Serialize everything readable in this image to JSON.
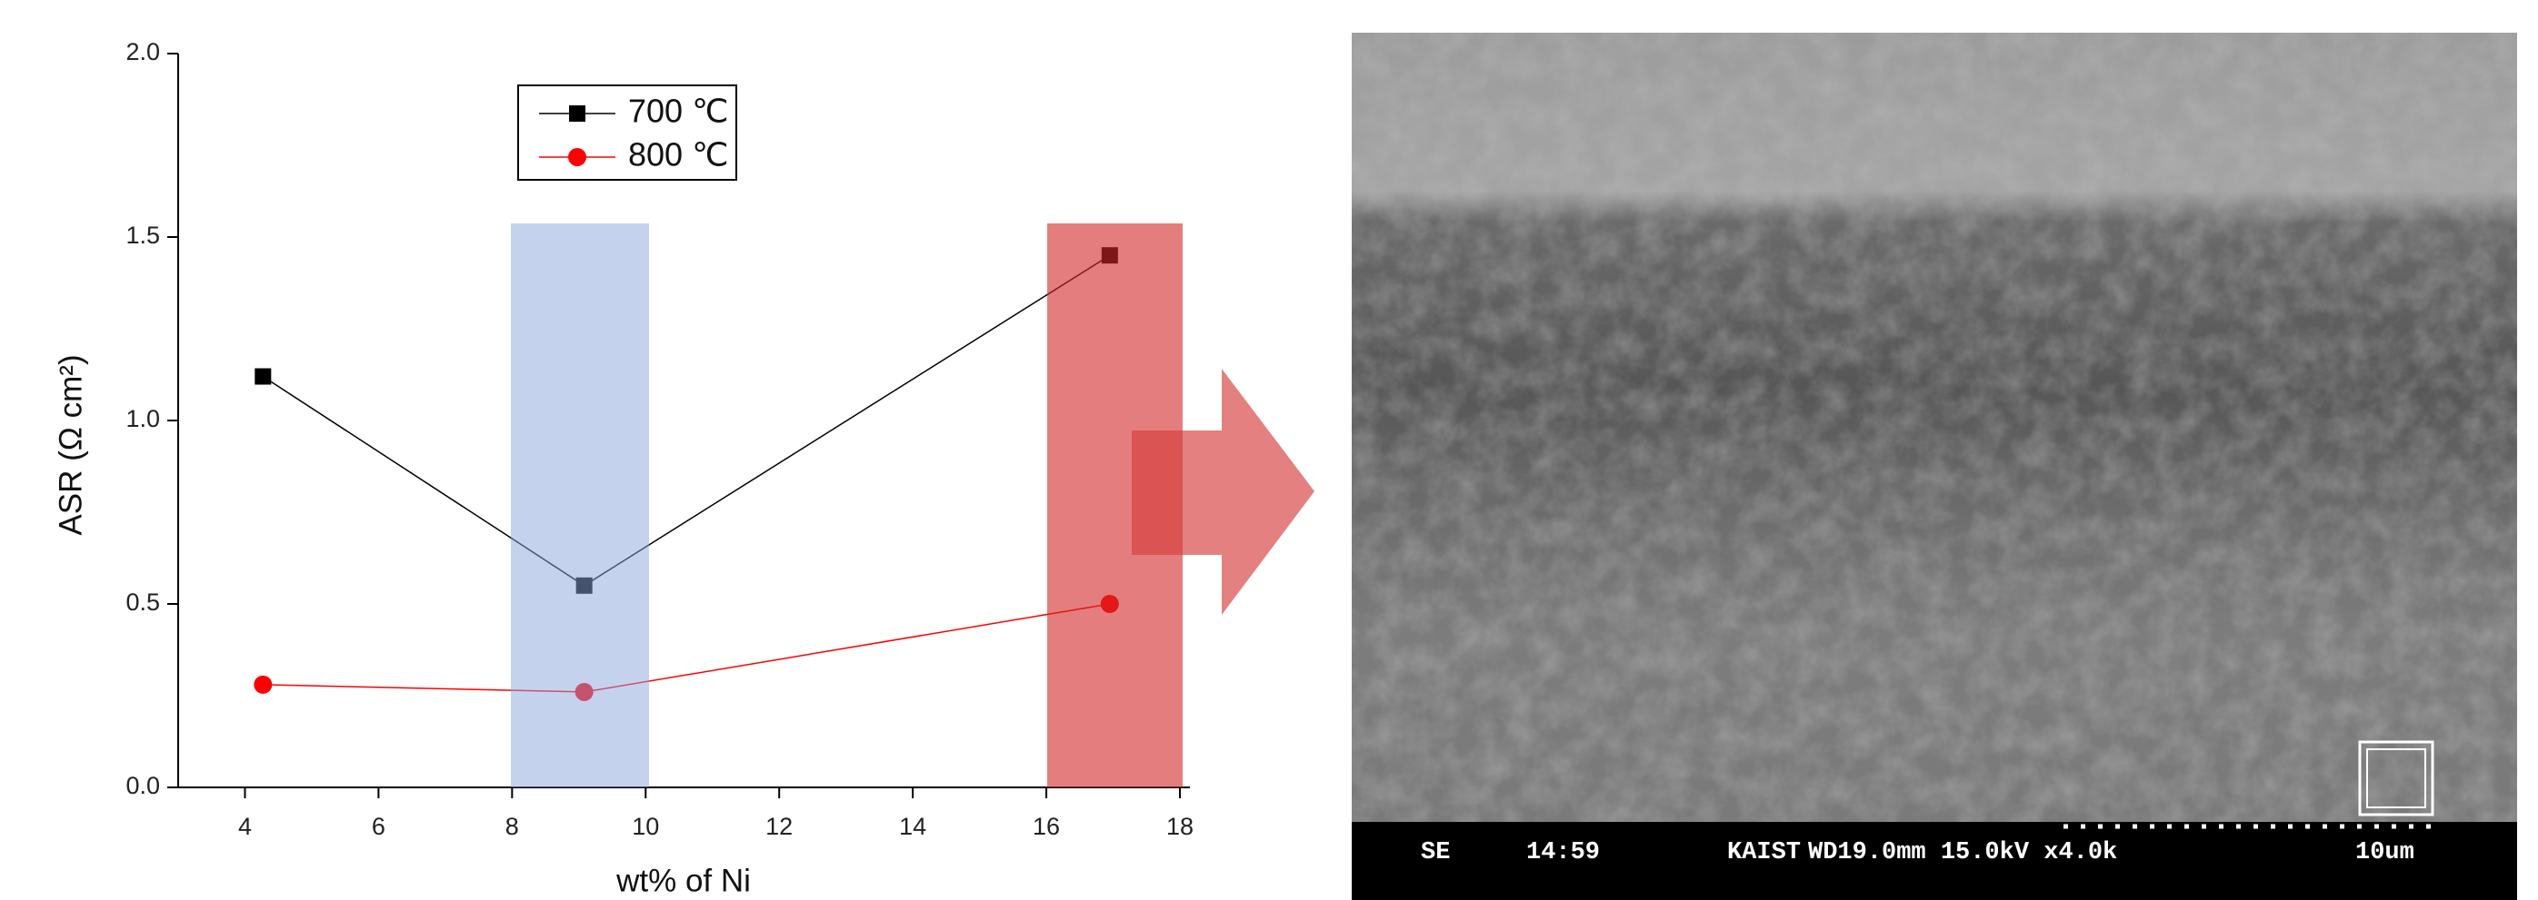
{
  "chart_data": {
    "type": "line",
    "xlabel": "wt% of Ni",
    "ylabel": "ASR (Ω cm²)",
    "x": [
      4.27,
      9.08,
      16.95
    ],
    "series": [
      {
        "name": "700 ℃",
        "color": "#000000",
        "marker": "square",
        "values": [
          1.12,
          0.55,
          1.45
        ]
      },
      {
        "name": "800 ℃",
        "color": "#ff0000",
        "marker": "circle",
        "values": [
          0.28,
          0.26,
          0.5
        ]
      }
    ],
    "xlim": [
      3,
      18.15
    ],
    "xticks": [
      4,
      6,
      8,
      10,
      12,
      14,
      16,
      18
    ],
    "ylim": [
      0,
      2
    ],
    "yticks": [
      {
        "value": 0,
        "label": "0.0"
      },
      {
        "value": 0.5,
        "label": "0.5"
      },
      {
        "value": 1,
        "label": "1.0"
      },
      {
        "value": 1.5,
        "label": "1.5"
      },
      {
        "value": 2,
        "label": "2.0"
      }
    ],
    "legend": "upper center"
  },
  "sem_image": {
    "info_bar": [
      "SE",
      "14:59",
      "KAIST",
      "WD19.0mm 15.0kV x4.0k",
      "10um"
    ]
  }
}
